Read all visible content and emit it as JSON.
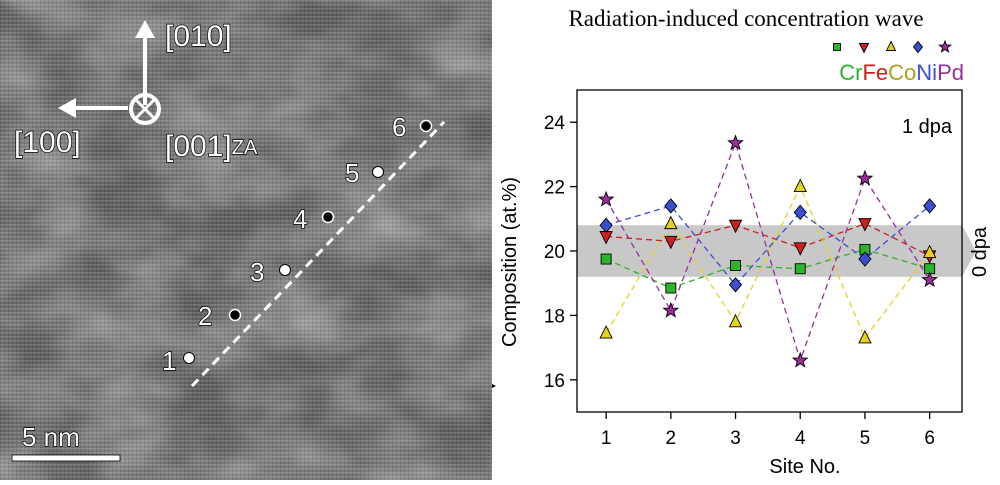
{
  "micrograph": {
    "dir_up": "[010]",
    "dir_left": "[100]",
    "zone_axis_main": "[001]",
    "zone_axis_sub": "ZA",
    "scale_bar_label": "5 nm",
    "site_labels": [
      "1",
      "2",
      "3",
      "4",
      "5",
      "6"
    ]
  },
  "chart_data": {
    "type": "line",
    "title": "Radiation-induced concentration wave",
    "xlabel": "Site No.",
    "ylabel": "Composition (at.%)",
    "annotation": "1 dpa",
    "band_label": "0 dpa",
    "band_range": [
      19.2,
      20.8
    ],
    "xlim": [
      0.55,
      6.5
    ],
    "ylim": [
      15,
      25
    ],
    "x": [
      1,
      2,
      3,
      4,
      5,
      6
    ],
    "xticks": [
      "1",
      "2",
      "3",
      "4",
      "5",
      "6"
    ],
    "yticks": [
      16,
      18,
      20,
      22,
      24
    ],
    "legend_position": "top-right",
    "series": [
      {
        "name": "Cr",
        "color": "#2db42d",
        "marker": "square",
        "values": [
          19.75,
          18.85,
          19.55,
          19.45,
          20.05,
          19.45
        ]
      },
      {
        "name": "Fe",
        "color": "#cc1f1f",
        "marker": "triangle-down",
        "values": [
          20.45,
          20.3,
          20.8,
          20.1,
          20.85,
          19.85
        ]
      },
      {
        "name": "Co",
        "color": "#e6d21e",
        "marker": "triangle-up",
        "values": [
          17.45,
          20.85,
          17.8,
          22.0,
          17.3,
          19.95
        ]
      },
      {
        "name": "Ni",
        "color": "#3b4fd1",
        "marker": "diamond",
        "values": [
          20.8,
          21.4,
          18.95,
          21.2,
          19.75,
          21.4
        ]
      },
      {
        "name": "Pd",
        "color": "#9b2d9b",
        "marker": "star",
        "values": [
          21.6,
          18.15,
          23.35,
          16.6,
          22.25,
          19.1
        ]
      }
    ]
  }
}
